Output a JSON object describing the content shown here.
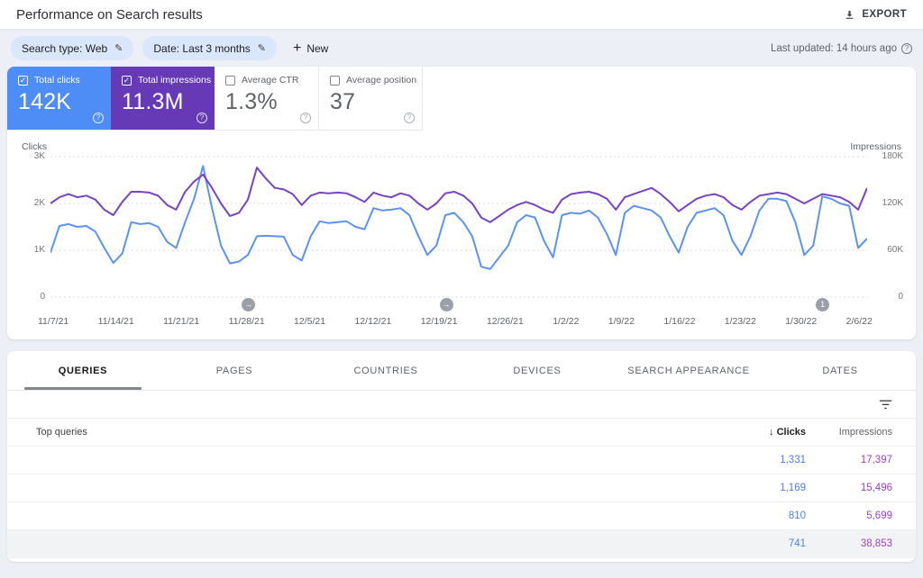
{
  "header": {
    "title": "Performance on Search results",
    "export_label": "EXPORT"
  },
  "filters": {
    "search_type_chip": "Search type: Web",
    "date_chip": "Date: Last 3 months",
    "new_label": "New",
    "last_updated": "Last updated: 14 hours ago"
  },
  "metrics": [
    {
      "label": "Total clicks",
      "value": "142K",
      "checked": true,
      "bg": "#4e8df5",
      "fg": "#ffffff"
    },
    {
      "label": "Total impressions",
      "value": "11.3M",
      "checked": true,
      "bg": "#6639b6",
      "fg": "#ffffff"
    },
    {
      "label": "Average CTR",
      "value": "1.3%",
      "checked": false,
      "bg": "#ffffff",
      "fg": "#5f6368"
    },
    {
      "label": "Average position",
      "value": "37",
      "checked": false,
      "bg": "#ffffff",
      "fg": "#5f6368"
    }
  ],
  "chart_data": {
    "type": "line",
    "x_unit": "day",
    "x_ticks": [
      "11/7/21",
      "11/14/21",
      "11/21/21",
      "11/28/21",
      "12/5/21",
      "12/12/21",
      "12/19/21",
      "12/26/21",
      "1/2/22",
      "1/9/22",
      "1/16/22",
      "1/23/22",
      "1/30/22",
      "2/6/22"
    ],
    "left_axis": {
      "label": "Clicks",
      "ticks": [
        "3K",
        "2K",
        "1K",
        "0"
      ],
      "max": 3000
    },
    "right_axis": {
      "label": "Impressions",
      "ticks": [
        "180K",
        "120K",
        "60K",
        "0"
      ],
      "max": 180000
    },
    "grid": "dashed horizontal at each tick",
    "series": [
      {
        "name": "Clicks",
        "axis": "left",
        "color": "#5b93ee",
        "values": [
          950,
          1520,
          1560,
          1500,
          1520,
          1400,
          1050,
          730,
          930,
          1600,
          1560,
          1580,
          1500,
          1180,
          1050,
          1600,
          2100,
          2800,
          1900,
          1100,
          720,
          760,
          900,
          1300,
          1310,
          1300,
          1290,
          900,
          780,
          1300,
          1620,
          1580,
          1600,
          1620,
          1500,
          1450,
          1900,
          1850,
          1870,
          1900,
          1750,
          1300,
          900,
          1100,
          1750,
          1800,
          1600,
          1300,
          650,
          600,
          850,
          1100,
          1600,
          1750,
          1700,
          1200,
          850,
          1750,
          1800,
          1780,
          1850,
          1700,
          1350,
          900,
          1800,
          1950,
          1900,
          1850,
          1700,
          1300,
          950,
          1500,
          1800,
          1850,
          1900,
          1750,
          1200,
          900,
          1300,
          1850,
          2100,
          2100,
          2050,
          1600,
          900,
          1100,
          2150,
          2100,
          2000,
          1950,
          1050,
          1250
        ]
      },
      {
        "name": "Impressions",
        "axis": "right",
        "color": "#7743c4",
        "values": [
          120000,
          128000,
          132000,
          128000,
          130000,
          125000,
          112000,
          105000,
          122000,
          135000,
          135000,
          134000,
          130000,
          118000,
          112000,
          135000,
          148000,
          157000,
          140000,
          120000,
          104000,
          108000,
          125000,
          166000,
          152000,
          140000,
          138000,
          132000,
          118000,
          130000,
          134000,
          133000,
          134000,
          133000,
          128000,
          122000,
          134000,
          130000,
          128000,
          133000,
          130000,
          120000,
          112000,
          120000,
          133000,
          135000,
          130000,
          120000,
          102000,
          96000,
          104000,
          112000,
          118000,
          122000,
          118000,
          112000,
          108000,
          125000,
          132000,
          134000,
          135000,
          132000,
          126000,
          112000,
          128000,
          132000,
          136000,
          140000,
          132000,
          122000,
          110000,
          118000,
          126000,
          130000,
          132000,
          128000,
          118000,
          112000,
          122000,
          130000,
          132000,
          134000,
          132000,
          126000,
          120000,
          126000,
          132000,
          130000,
          128000,
          122000,
          112000,
          140000
        ]
      }
    ],
    "markers": [
      {
        "glyph": "→",
        "pos": 0.242
      },
      {
        "glyph": "→",
        "pos": 0.484
      },
      {
        "glyph": "1",
        "pos": 0.945
      }
    ]
  },
  "table": {
    "tabs": [
      {
        "label": "QUERIES",
        "active": true
      },
      {
        "label": "PAGES",
        "active": false
      },
      {
        "label": "COUNTRIES",
        "active": false
      },
      {
        "label": "DEVICES",
        "active": false
      },
      {
        "label": "SEARCH APPEARANCE",
        "active": false
      },
      {
        "label": "DATES",
        "active": false
      }
    ],
    "header": {
      "query_col": "Top queries",
      "clicks_col": "Clicks",
      "impressions_col": "Impressions",
      "sort_arrow": "↓"
    },
    "value_colors": {
      "clicks": "#4d7fe8",
      "impressions": "#9c42c8"
    },
    "rows": [
      {
        "query_redacted": true,
        "clicks": "1,331",
        "impressions": "17,397",
        "highlight": false
      },
      {
        "query_redacted": true,
        "clicks": "1,169",
        "impressions": "15,496",
        "highlight": false
      },
      {
        "query_redacted": true,
        "clicks": "810",
        "impressions": "5,699",
        "highlight": false
      },
      {
        "query_redacted": true,
        "clicks": "741",
        "impressions": "38,853",
        "highlight": true
      }
    ]
  }
}
